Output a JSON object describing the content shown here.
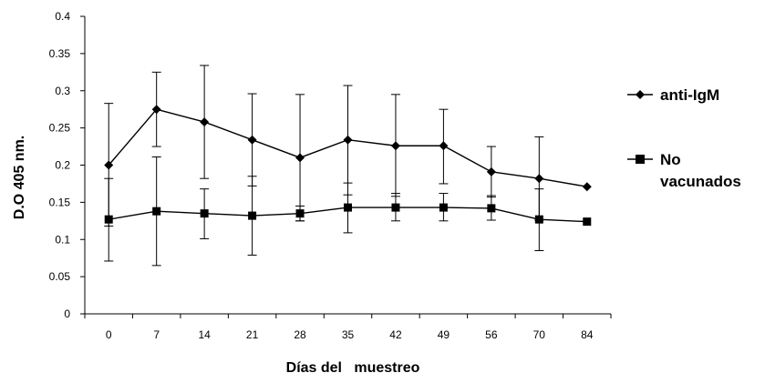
{
  "chart_data": {
    "type": "line",
    "title": "",
    "xlabel": "Días del   muestreo",
    "ylabel": "D.O 405 nm.",
    "categories": [
      "0",
      "7",
      "14",
      "21",
      "28",
      "35",
      "42",
      "49",
      "56",
      "70",
      "84"
    ],
    "ylim": [
      0,
      0.4
    ],
    "yticks": [
      "0",
      "0.05",
      "0.1",
      "0.15",
      "0.2",
      "0.25",
      "0.3",
      "0.35",
      "0.4"
    ],
    "grid": false,
    "legend_position": "right",
    "series": [
      {
        "name": "anti-IgM",
        "marker": "diamond",
        "values": [
          0.2,
          0.275,
          0.258,
          0.234,
          0.21,
          0.234,
          0.226,
          0.226,
          0.191,
          0.182,
          0.171
        ],
        "error_upper": [
          0.283,
          0.325,
          0.334,
          0.296,
          0.295,
          0.307,
          0.295,
          0.275,
          0.225,
          0.238,
          null
        ],
        "error_lower": [
          0.118,
          0.225,
          0.182,
          0.172,
          0.125,
          0.16,
          0.158,
          0.175,
          0.157,
          0.126,
          null
        ]
      },
      {
        "name": "No vacunados",
        "marker": "square",
        "values": [
          0.127,
          0.138,
          0.135,
          0.132,
          0.135,
          0.143,
          0.143,
          0.143,
          0.142,
          0.127,
          0.124
        ],
        "error_upper": [
          0.182,
          0.211,
          0.168,
          0.185,
          0.145,
          0.176,
          0.162,
          0.162,
          0.159,
          0.168,
          null
        ],
        "error_lower": [
          0.071,
          0.065,
          0.101,
          0.079,
          0.125,
          0.109,
          0.125,
          0.125,
          0.126,
          0.085,
          null
        ]
      }
    ],
    "legend": {
      "items": [
        {
          "lines": [
            "anti-IgM"
          ]
        },
        {
          "lines": [
            "No",
            "vacunados"
          ]
        }
      ]
    }
  }
}
